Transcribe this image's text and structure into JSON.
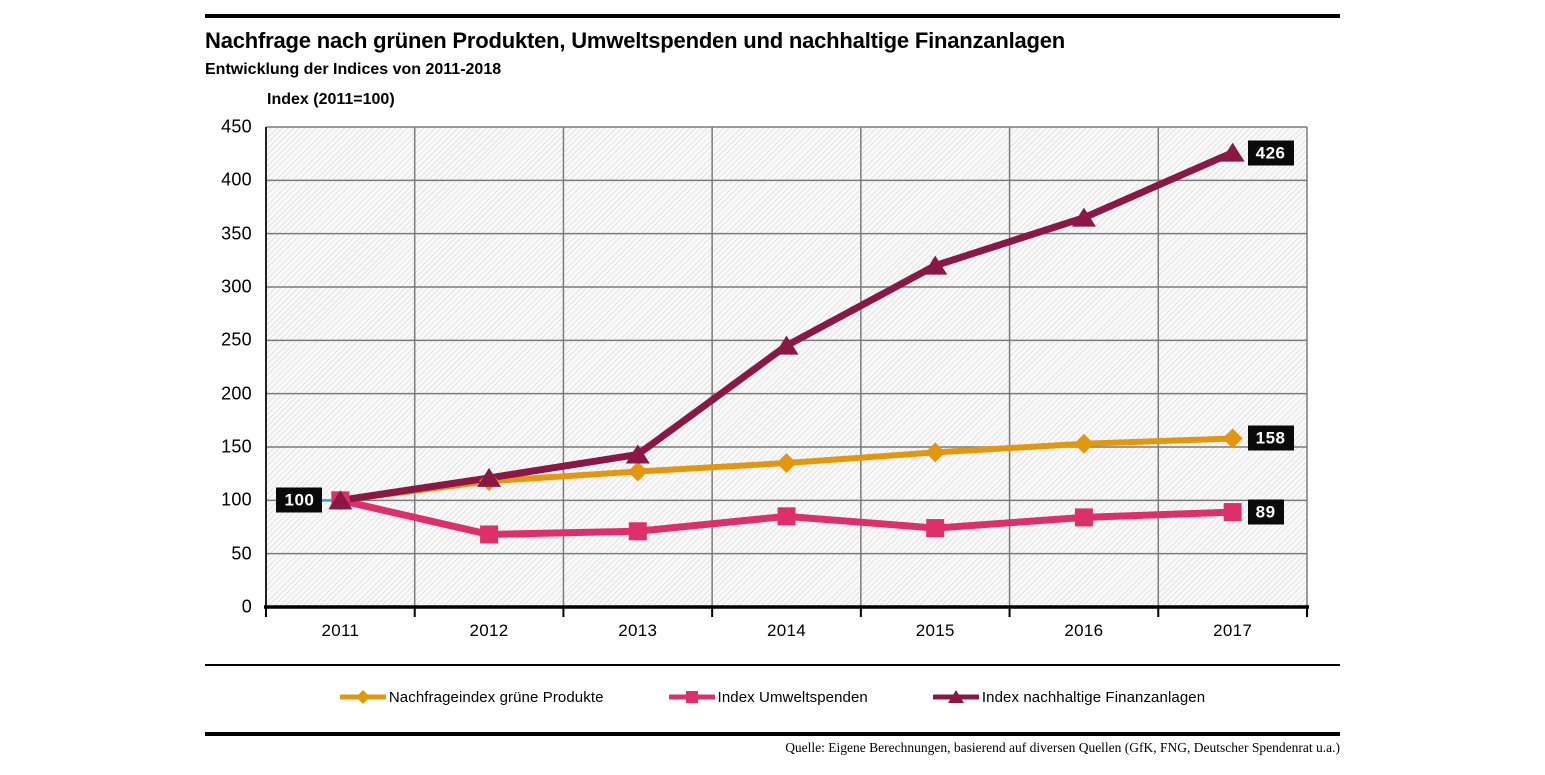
{
  "header": {
    "title": "Nachfrage nach grünen Produkten, Umweltspenden und nachhaltige Finanzanlagen",
    "subtitle": "Entwicklung der Indices von 2011-2018"
  },
  "chart_data": {
    "type": "line",
    "title": "Nachfrage nach grünen Produkten, Umweltspenden und nachhaltige Finanzanlagen",
    "subtitle": "Entwicklung der Indices von 2011-2018",
    "axis_label": "Index (2011=100)",
    "x": [
      "2011",
      "2012",
      "2013",
      "2014",
      "2015",
      "2016",
      "2017"
    ],
    "ylim": [
      0,
      450
    ],
    "y_ticks": [
      0,
      50,
      100,
      150,
      200,
      250,
      300,
      350,
      400,
      450
    ],
    "grid": true,
    "legend_position": "bottom",
    "plot_background": "diagonal-hatch",
    "series": [
      {
        "name": "Nachfrageindex grüne Produkte",
        "color": "#E3970F",
        "marker": "diamond",
        "values": [
          100,
          118,
          127,
          135,
          145,
          153,
          158
        ],
        "end_label": "158"
      },
      {
        "name": "Index Umweltspenden",
        "color": "#DF2F6B",
        "marker": "square",
        "values": [
          100,
          68,
          71,
          85,
          74,
          84,
          89
        ],
        "end_label": "89"
      },
      {
        "name": "Index nachhaltige Finanzanlagen",
        "color": "#8A1746",
        "marker": "triangle",
        "values": [
          100,
          121,
          143,
          245,
          320,
          365,
          426
        ],
        "end_label": "426"
      }
    ],
    "start_label": {
      "text": "100",
      "leader_color": "#2FA0C4"
    }
  },
  "footer": {
    "source": "Quelle: Eigene Berechnungen, basierend auf diversen Quellen (GfK, FNG, Deutscher Spendenrat u.a.)"
  }
}
